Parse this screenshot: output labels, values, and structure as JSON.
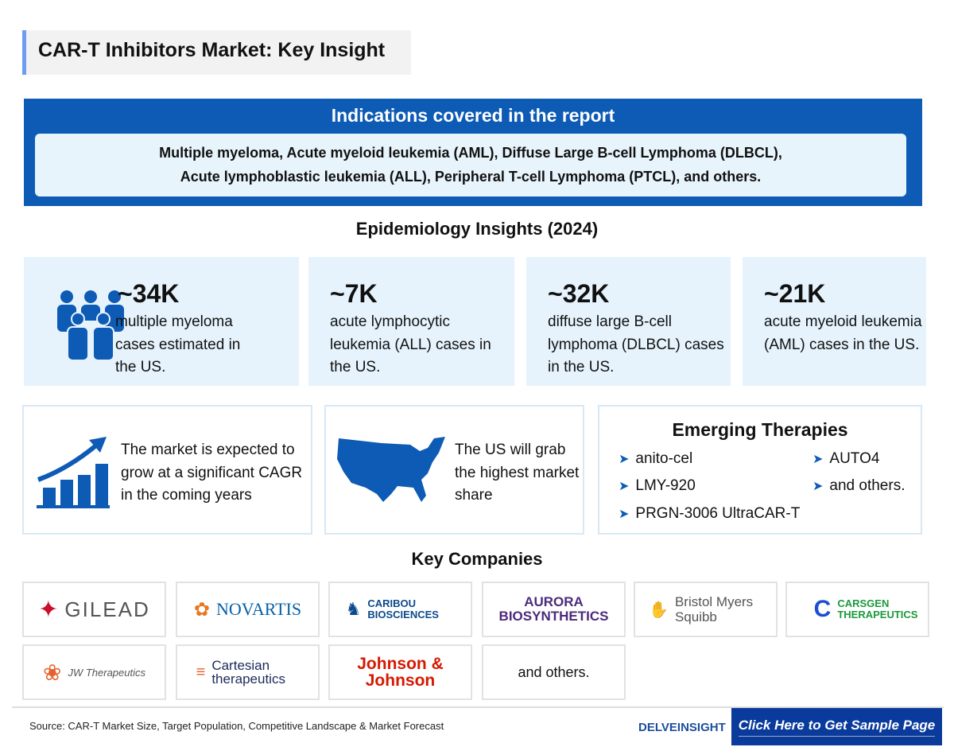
{
  "title": "CAR-T Inhibitors Market: Key Insight",
  "indications": {
    "heading": "Indications covered in the report",
    "line1": "Multiple myeloma, Acute myeloid leukemia (AML), Diffuse Large B-cell Lymphoma (DLBCL),",
    "line2": "Acute lymphoblastic leukemia (ALL), Peripheral T-cell Lymphoma (PTCL), and others."
  },
  "epidemiology": {
    "heading": "Epidemiology Insights (2024)",
    "stats": [
      {
        "value": "~34K",
        "desc": "multiple myeloma cases estimated in the US.",
        "icon": "people-icon"
      },
      {
        "value": "~7K",
        "desc": "acute lymphocytic leukemia (ALL) cases in the US."
      },
      {
        "value": "~32K",
        "desc": "diffuse large B-cell lymphoma (DLBCL) cases in the US."
      },
      {
        "value": "~21K",
        "desc": "acute myeloid leukemia (AML) cases in the US."
      }
    ]
  },
  "market": {
    "growth": "The market is expected to grow at a significant CAGR in the coming years",
    "us": "The US will grab the highest market share"
  },
  "emerging": {
    "heading": "Emerging Therapies",
    "items": [
      "anito-cel",
      "LMY-920",
      "PRGN-3006 UltraCAR-T",
      "AUTO4",
      "and others."
    ]
  },
  "companies": {
    "heading": "Key Companies",
    "items": [
      "GILEAD",
      "NOVARTIS",
      "CARIBOU BIOSCIENCES",
      "AURORA BIOSYNTHETICS",
      "Bristol Myers Squibb",
      "CARSGEN THERAPEUTICS",
      "JW Therapeutics",
      "Cartesian therapeutics",
      "Johnson & Johnson",
      "and others."
    ]
  },
  "footer": {
    "source": "Source: CAR-T Market Size, Target Population, Competitive Landscape & Market Forecast",
    "brand": "DELVEINSIGHT",
    "cta": "Click Here to Get Sample Page"
  },
  "colors": {
    "primary": "#0d5bb5",
    "card": "#e6f3fc",
    "cta": "#0a3a9c"
  }
}
